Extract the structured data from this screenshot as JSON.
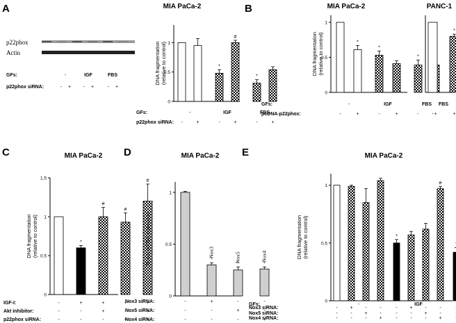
{
  "panel_letters": {
    "A": "A",
    "B": "B",
    "C": "C",
    "D": "D",
    "E": "E"
  },
  "blot": {
    "protein1": "p22phox",
    "protein2": "Actin",
    "gf_label": "GFs:",
    "sirna_label": "p22phox siRNA:",
    "gfs": [
      "-",
      "IGF",
      "FBS"
    ],
    "sirna_signs": [
      "-",
      "+",
      "-",
      "+",
      "-",
      "+"
    ]
  },
  "chart_data": [
    {
      "id": "A",
      "type": "bar",
      "title": "MIA PaCa-2",
      "ylabel": "DNA fragmentation (relative to control)",
      "ylim": [
        0,
        1.3
      ],
      "yticks": [
        0,
        0.5,
        1
      ],
      "values": [
        1.0,
        0.95,
        0.48,
        1.0,
        0.31,
        0.54
      ],
      "errors": [
        0.0,
        0.12,
        0.06,
        0.04,
        0.06,
        0.05
      ],
      "patterns": [
        "open",
        "open",
        "check",
        "check",
        "check",
        "check"
      ],
      "sig": [
        "",
        "",
        "*",
        "#",
        "*",
        ""
      ],
      "rows": [
        {
          "label": "GFs:",
          "signs": [
            "-",
            "",
            "IGF",
            "",
            "FBS",
            ""
          ],
          "grouped": true
        },
        {
          "label": "p22phox siRNA:",
          "signs": [
            "-",
            "+",
            "-",
            "+",
            "-",
            "+"
          ]
        }
      ]
    },
    {
      "id": "B",
      "type": "bar",
      "title": "MIA PaCa-2",
      "ylabel": "DNA fragmentation (relative to control)",
      "ylim": [
        0,
        1.1
      ],
      "yticks": [
        0,
        0.5,
        1
      ],
      "values": [
        1.0,
        0.61,
        0.53,
        0.41,
        0.39,
        0.39
      ],
      "errors": [
        0.0,
        0.06,
        0.06,
        0.04,
        0.07,
        0.07
      ],
      "patterns": [
        "open",
        "open",
        "check",
        "check",
        "check",
        "check"
      ],
      "sig": [
        "",
        "*",
        "*",
        "",
        "*",
        ""
      ],
      "rows": [
        {
          "label": "GFs:",
          "signs": [
            "-",
            "",
            "IGF",
            "",
            "FBS",
            ""
          ],
          "grouped": true
        },
        {
          "label": "pcDNA-p22phox:",
          "signs": [
            "-",
            "+",
            "-",
            "+",
            "-",
            "+"
          ]
        }
      ]
    },
    {
      "id": "B2",
      "type": "bar",
      "title": "PANC-1",
      "ylim": [
        0,
        1.1
      ],
      "values": [
        1.0,
        0.8
      ],
      "errors": [
        0.0,
        0.03
      ],
      "patterns": [
        "open",
        "check"
      ],
      "sig": [
        "",
        "*"
      ],
      "rows": [
        {
          "label": "",
          "signs": [
            "FBS",
            ""
          ],
          "grouped": true
        },
        {
          "label": "",
          "signs": [
            "-",
            "+"
          ]
        }
      ]
    },
    {
      "id": "C",
      "type": "bar",
      "title": "MIA PaCa-2",
      "ylabel": "DNA fragmentation (relative to control)",
      "ylim": [
        0,
        1.5
      ],
      "yticks": [
        0,
        0.5,
        1.0,
        1.5
      ],
      "values": [
        1.0,
        0.6,
        1.0,
        0.93,
        1.2
      ],
      "errors": [
        0.0,
        0.03,
        0.12,
        0.12,
        0.22
      ],
      "patterns": [
        "open",
        "black",
        "check",
        "check",
        "check"
      ],
      "sig": [
        "",
        "*",
        "#",
        "#",
        "#"
      ],
      "rows": [
        {
          "label": "IGF-I:",
          "signs": [
            "-",
            "+",
            "+",
            "+",
            "+"
          ]
        },
        {
          "label": "Akt inhibitor:",
          "signs": [
            "-",
            "-",
            "+",
            "-",
            "+"
          ]
        },
        {
          "label": "p22phox siRNA:",
          "signs": [
            "-",
            "-",
            "-",
            "+",
            "+"
          ]
        }
      ]
    },
    {
      "id": "D",
      "type": "bar",
      "title": "MIA PaCa-2",
      "ylabel": "Noxes mRNA expression",
      "ylim": [
        0,
        1.1
      ],
      "yticks": [
        0.0,
        0.5,
        1.0
      ],
      "values": [
        1.0,
        0.3,
        0.25,
        0.26
      ],
      "errors": [
        0.01,
        0.02,
        0.03,
        0.02
      ],
      "patterns": [
        "gray",
        "gray",
        "gray",
        "gray"
      ],
      "bar_labels": [
        "",
        "Nox3",
        "Nox5",
        "Nox4"
      ],
      "sig": [
        "",
        "*",
        "*",
        "*"
      ],
      "rows": [
        {
          "label": "Nox3 siRNA:",
          "signs": [
            "-",
            "+",
            "-",
            "-"
          ]
        },
        {
          "label": "Nox5 siRNA:",
          "signs": [
            "-",
            "-",
            "+",
            "-"
          ]
        },
        {
          "label": "Nox4 siRNA:",
          "signs": [
            "-",
            "-",
            "-",
            "+"
          ]
        }
      ]
    },
    {
      "id": "E",
      "type": "bar",
      "title": "MIA PaCa-2",
      "ylabel": "DNA fragmentation (relative to control)",
      "ylim": [
        0,
        1.1
      ],
      "yticks": [
        0.0,
        0.5,
        1.0
      ],
      "values": [
        1.0,
        0.99,
        0.85,
        1.04,
        0.5,
        0.57,
        0.62,
        0.97,
        0.42,
        0.36,
        0.49,
        0.85
      ],
      "errors": [
        0.0,
        0.01,
        0.12,
        0.02,
        0.03,
        0.03,
        0.05,
        0.02,
        0.04,
        0.02,
        0.04,
        0.02
      ],
      "patterns": [
        "open",
        "check",
        "check",
        "check",
        "black",
        "check",
        "check",
        "check",
        "black",
        "check",
        "check",
        "check"
      ],
      "sig": [
        "",
        "",
        "",
        "",
        "*",
        "",
        "",
        "#",
        "*",
        "",
        "",
        "#"
      ],
      "rows": [
        {
          "label": "GFs:",
          "signs": [
            "",
            "-",
            "",
            "",
            "",
            "IGF",
            "",
            "",
            "",
            "FBS",
            "",
            ""
          ],
          "grouped": true
        },
        {
          "label": "Nox3 siRNA:",
          "signs": [
            "-",
            "+",
            "-",
            "-",
            "-",
            "+",
            "-",
            "-",
            "-",
            "+",
            "-",
            "-"
          ]
        },
        {
          "label": "Nox5 siRNA:",
          "signs": [
            "-",
            "-",
            "+",
            "-",
            "-",
            "-",
            "+",
            "-",
            "-",
            "-",
            "+",
            "-"
          ]
        },
        {
          "label": "Nox4 siRNA:",
          "signs": [
            "-",
            "-",
            "-",
            "+",
            "-",
            "-",
            "-",
            "+",
            "-",
            "-",
            "-",
            "+"
          ]
        }
      ]
    }
  ]
}
